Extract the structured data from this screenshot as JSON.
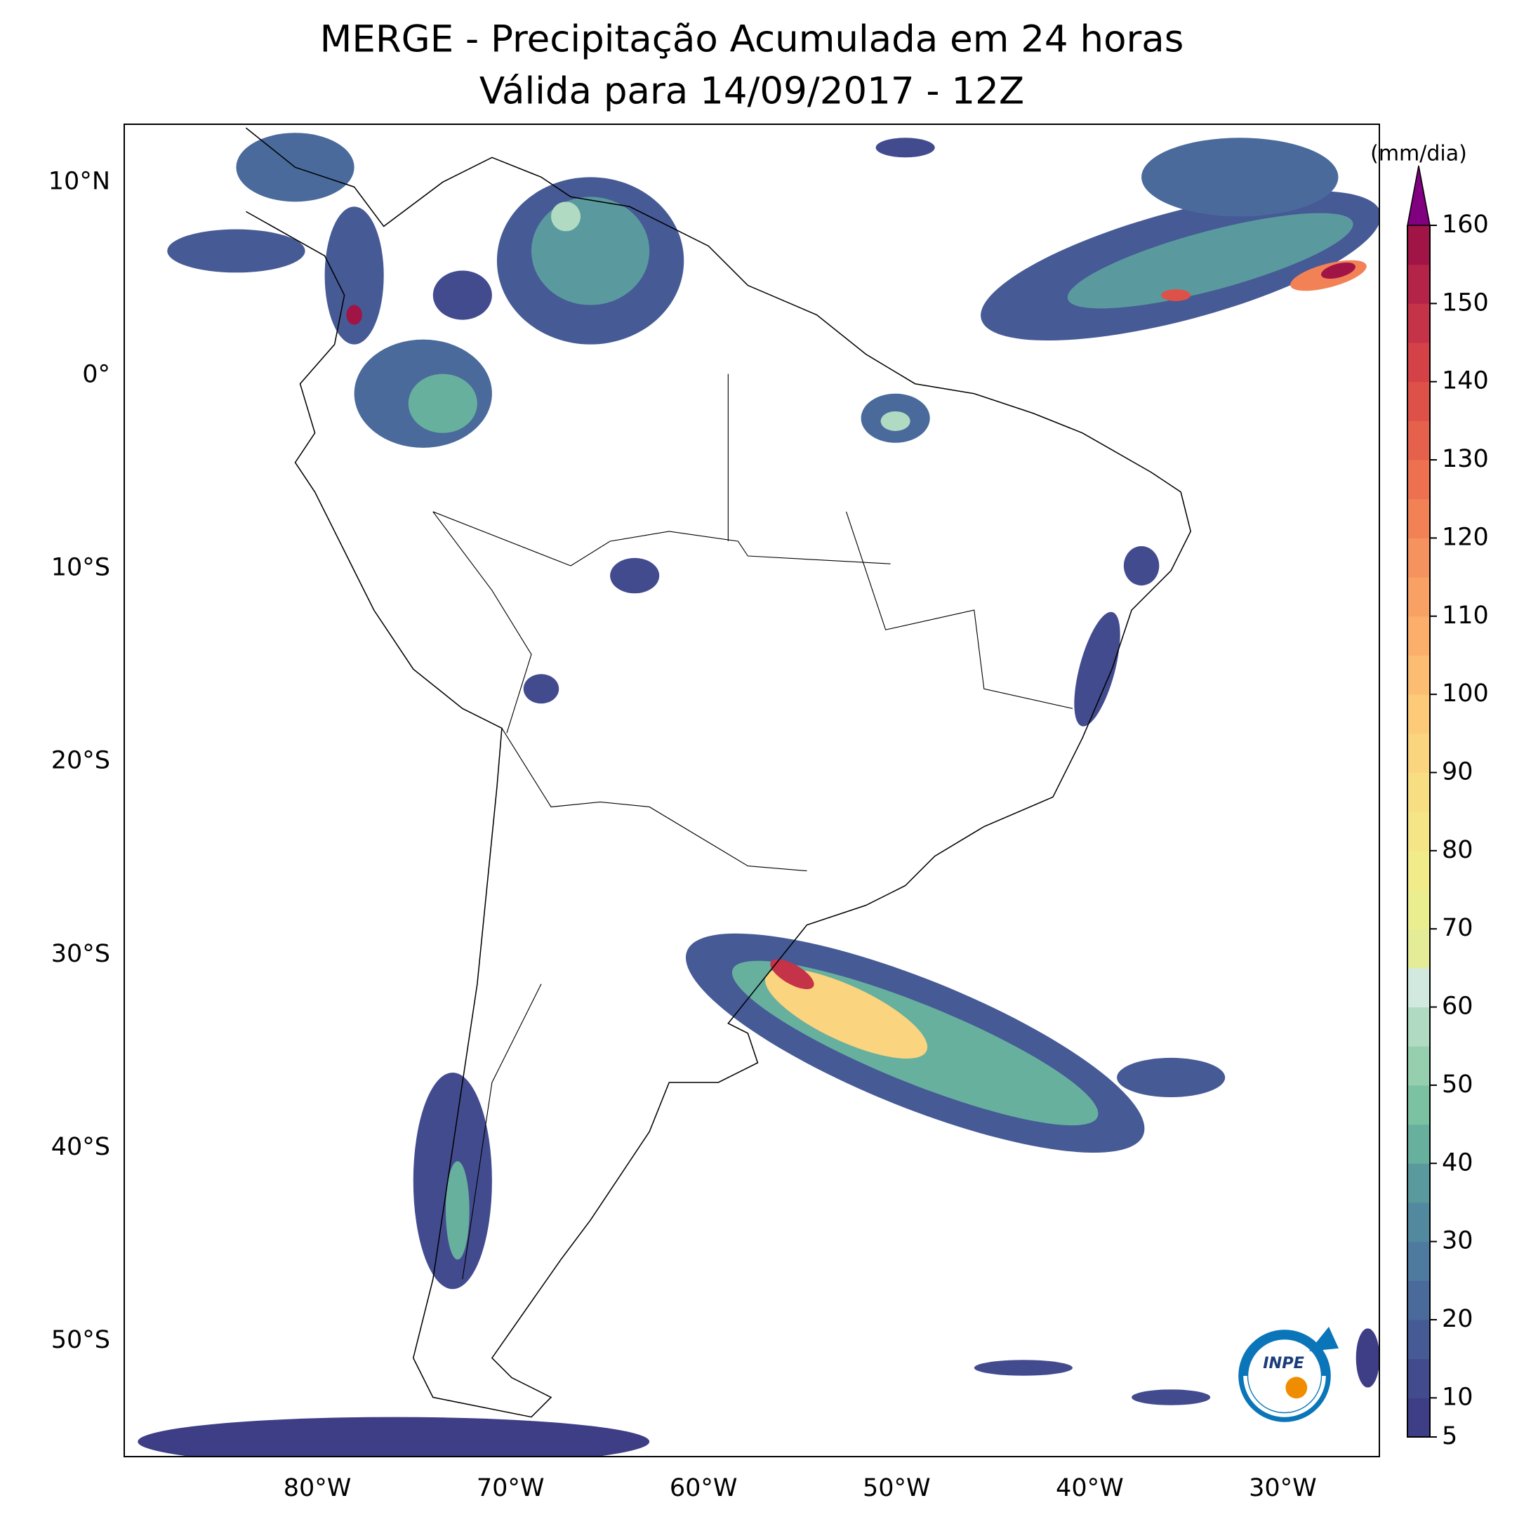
{
  "chart_data": {
    "type": "map",
    "title": "MERGE - Precipitação Acumulada em 24 horas",
    "subtitle": "Válida para 14/09/2017 - 12Z",
    "xlim": [
      -90,
      -25
    ],
    "ylim": [
      -56,
      13
    ],
    "xticks": [
      {
        "value": -80,
        "label": "80°W"
      },
      {
        "value": -70,
        "label": "70°W"
      },
      {
        "value": -60,
        "label": "60°W"
      },
      {
        "value": -50,
        "label": "50°W"
      },
      {
        "value": -40,
        "label": "40°W"
      },
      {
        "value": -30,
        "label": "30°W"
      }
    ],
    "yticks": [
      {
        "value": 10,
        "label": "10°N"
      },
      {
        "value": 0,
        "label": "0°"
      },
      {
        "value": -10,
        "label": "10°S"
      },
      {
        "value": -20,
        "label": "20°S"
      },
      {
        "value": -30,
        "label": "30°S"
      },
      {
        "value": -40,
        "label": "40°S"
      },
      {
        "value": -50,
        "label": "50°S"
      }
    ],
    "colorbar": {
      "label": "(mm/dia)",
      "lim": [
        5,
        160
      ],
      "ticks": [
        5,
        10,
        20,
        30,
        40,
        50,
        60,
        70,
        80,
        90,
        100,
        110,
        120,
        130,
        140,
        150,
        160
      ],
      "levels": [
        5,
        10,
        15,
        20,
        25,
        30,
        35,
        40,
        45,
        50,
        55,
        60,
        65,
        70,
        75,
        80,
        85,
        90,
        95,
        100,
        105,
        110,
        115,
        120,
        125,
        130,
        135,
        140,
        145,
        150,
        155,
        160
      ],
      "colors": [
        "#3e3e86",
        "#434b8f",
        "#465a96",
        "#4a6a9c",
        "#4e7aa0",
        "#52899f",
        "#5a9a9e",
        "#68b09e",
        "#7bc2a2",
        "#95cfae",
        "#b0dbc2",
        "#d2e9e0",
        "#e4ec97",
        "#ebee8f",
        "#f1eb8a",
        "#f5e587",
        "#f8de83",
        "#fbd47f",
        "#fcca79",
        "#fcbd72",
        "#fbaf6b",
        "#f9a164",
        "#f6925d",
        "#f28256",
        "#ed7150",
        "#e6614b",
        "#de5148",
        "#d44147",
        "#c53348",
        "#b42448",
        "#a01446"
      ],
      "extend_color": "#800080"
    },
    "logo": "INPE"
  }
}
